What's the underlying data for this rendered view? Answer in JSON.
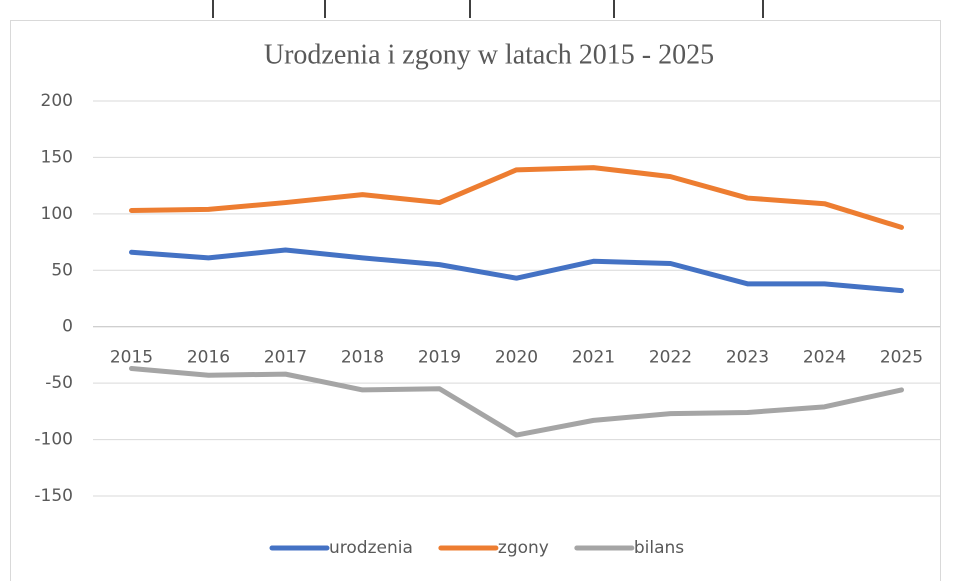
{
  "chart_data": {
    "type": "line",
    "title": "Urodzenia i zgony w latach 2015 - 2025",
    "categories": [
      "2015",
      "2016",
      "2017",
      "2018",
      "2019",
      "2020",
      "2021",
      "2022",
      "2023",
      "2024",
      "2025"
    ],
    "series": [
      {
        "name": "urodzenia",
        "color": "#4472c4",
        "values": [
          66,
          61,
          68,
          61,
          55,
          43,
          58,
          56,
          38,
          38,
          32
        ]
      },
      {
        "name": "zgony",
        "color": "#ed7d31",
        "values": [
          103,
          104,
          110,
          117,
          110,
          139,
          141,
          133,
          114,
          109,
          88
        ]
      },
      {
        "name": "bilans",
        "color": "#a5a5a5",
        "values": [
          -37,
          -43,
          -42,
          -56,
          -55,
          -96,
          -83,
          -77,
          -76,
          -71,
          -56
        ]
      }
    ],
    "ylim": [
      -150,
      200
    ],
    "yticks": [
      -150,
      -100,
      -50,
      0,
      50,
      100,
      150,
      200
    ],
    "grid": true,
    "legend": "bottom"
  }
}
